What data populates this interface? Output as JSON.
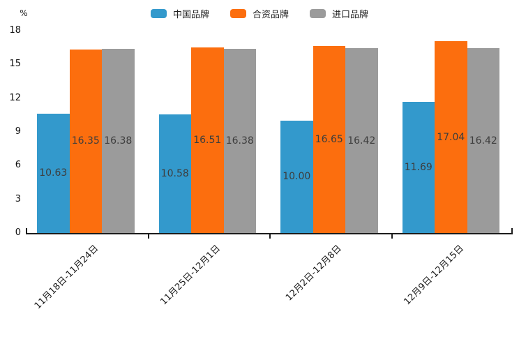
{
  "chart_data": {
    "type": "bar",
    "title": "",
    "unit_label": "%",
    "categories": [
      "11月18日-11月24日",
      "11月25日-12月1日",
      "12月2日-12月8日",
      "12月9日-12月15日"
    ],
    "series": [
      {
        "key": "china",
        "name": "中国品牌",
        "color": "#3399CC",
        "values": [
          10.63,
          10.58,
          10.0,
          11.69
        ]
      },
      {
        "key": "joint",
        "name": "合资品牌",
        "color": "#FC6E0E",
        "values": [
          16.35,
          16.51,
          16.65,
          17.04
        ]
      },
      {
        "key": "import",
        "name": "进口品牌",
        "color": "#9B9B9B",
        "values": [
          16.38,
          16.38,
          16.42,
          16.42
        ]
      }
    ],
    "ylim": [
      0,
      18
    ],
    "y_ticks": [
      0,
      3,
      6,
      9,
      12,
      15,
      18
    ],
    "grid": false,
    "legend_position": "top",
    "value_label_decimals": 2,
    "value_label_color": "#3d3d3d",
    "axis_color": "#1c1c1c"
  }
}
